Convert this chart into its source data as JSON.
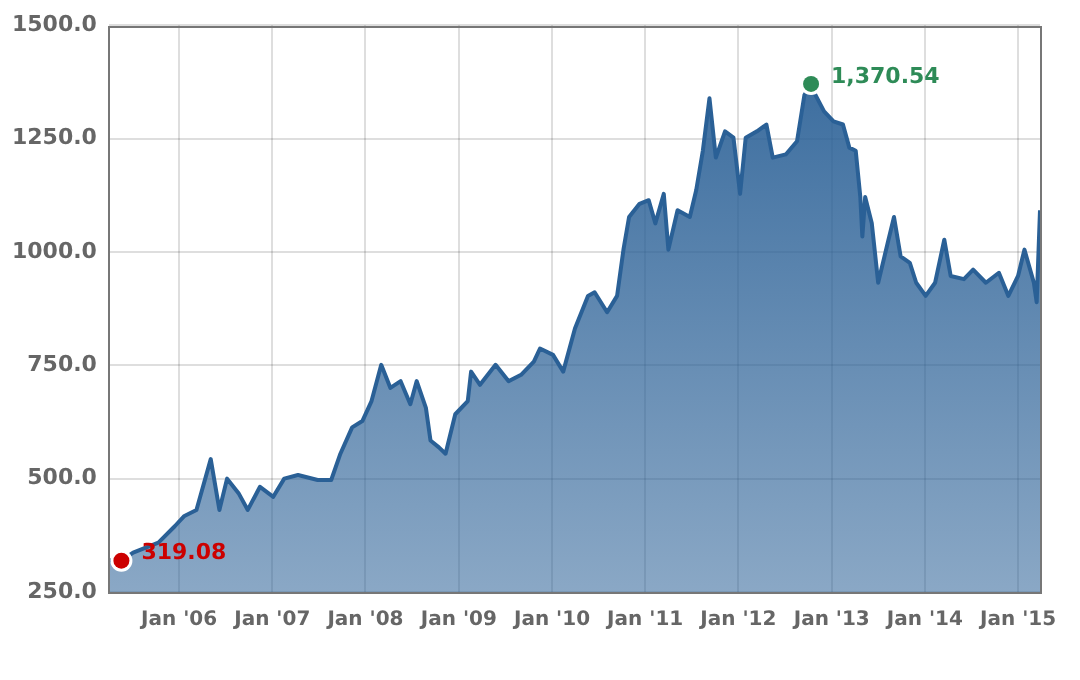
{
  "chart_data": {
    "type": "area",
    "x": [
      "2005-04-01",
      "2005-05-20",
      "2005-07-05",
      "2005-10-12",
      "2005-12-15",
      "2006-01-20",
      "2006-03-10",
      "2006-05-05",
      "2006-06-08",
      "2006-07-08",
      "2006-08-22",
      "2006-09-27",
      "2006-11-14",
      "2007-01-05",
      "2007-02-17",
      "2007-04-12",
      "2007-06-28",
      "2007-08-20",
      "2007-09-25",
      "2007-11-10",
      "2007-12-20",
      "2008-01-25",
      "2008-03-03",
      "2008-04-08",
      "2008-05-18",
      "2008-06-25",
      "2008-07-20",
      "2008-08-25",
      "2008-09-12",
      "2008-10-15",
      "2008-11-10",
      "2008-12-18",
      "2009-02-05",
      "2009-02-18",
      "2009-03-25",
      "2009-05-25",
      "2009-07-15",
      "2009-09-02",
      "2009-10-22",
      "2009-11-15",
      "2010-01-05",
      "2010-02-14",
      "2010-04-01",
      "2010-05-22",
      "2010-06-17",
      "2010-08-05",
      "2010-09-13",
      "2010-10-08",
      "2010-10-30",
      "2010-12-10",
      "2011-01-15",
      "2011-02-10",
      "2011-03-15",
      "2011-04-02",
      "2011-05-08",
      "2011-06-25",
      "2011-07-20",
      "2011-08-15",
      "2011-09-10",
      "2011-10-05",
      "2011-11-10",
      "2011-12-13",
      "2012-01-08",
      "2012-01-30",
      "2012-03-14",
      "2012-04-20",
      "2012-05-15",
      "2012-07-05",
      "2012-08-18",
      "2012-09-16",
      "2012-10-12",
      "2012-10-23",
      "2012-12-02",
      "2013-01-08",
      "2013-02-14",
      "2013-03-11",
      "2013-04-05",
      "2013-04-23",
      "2013-05-01",
      "2013-05-12",
      "2013-06-07",
      "2013-07-02",
      "2013-08-08",
      "2013-09-02",
      "2013-09-28",
      "2013-11-03",
      "2013-11-28",
      "2014-01-04",
      "2014-02-10",
      "2014-03-18",
      "2014-04-12",
      "2014-06-03",
      "2014-07-09",
      "2014-08-28",
      "2014-10-18",
      "2014-11-24",
      "2015-01-01",
      "2015-01-26",
      "2015-03-04",
      "2015-03-15",
      "2015-03-28"
    ],
    "series": [
      {
        "color": "#2a6096",
        "values": [
          320,
          319,
          337,
          359,
          395,
          417,
          431,
          543,
          431,
          500,
          468,
          431,
          482,
          460,
          500,
          508,
          497,
          497,
          555,
          613,
          627,
          671,
          751,
          700,
          715,
          664,
          715,
          656,
          584,
          569,
          555,
          642,
          671,
          736,
          707,
          751,
          715,
          729,
          758,
          787,
          773,
          736,
          831,
          903,
          911,
          867,
          903,
          1005,
          1077,
          1106,
          1114,
          1063,
          1128,
          1005,
          1092,
          1077,
          1136,
          1223,
          1339,
          1208,
          1266,
          1252,
          1128,
          1252,
          1266,
          1281,
          1208,
          1215,
          1244,
          1346,
          1370,
          1353,
          1310,
          1288,
          1281,
          1230,
          1223,
          1121,
          1034,
          1121,
          1063,
          932,
          1019,
          1077,
          990,
          976,
          932,
          903,
          932,
          1027,
          947,
          940,
          961,
          932,
          954,
          903,
          947,
          1005,
          932,
          889,
          1092
        ]
      }
    ],
    "xlim": [
      "2005-04-01",
      "2015-03-28"
    ],
    "xticks": [
      {
        "value": "2006-01",
        "label": "Jan '06"
      },
      {
        "value": "2007-01",
        "label": "Jan '07"
      },
      {
        "value": "2008-01",
        "label": "Jan '08"
      },
      {
        "value": "2009-01",
        "label": "Jan '09"
      },
      {
        "value": "2010-01",
        "label": "Jan '10"
      },
      {
        "value": "2011-01",
        "label": "Jan '11"
      },
      {
        "value": "2012-01",
        "label": "Jan '12"
      },
      {
        "value": "2013-01",
        "label": "Jan '13"
      },
      {
        "value": "2014-01",
        "label": "Jan '14"
      },
      {
        "value": "2015-01",
        "label": "Jan '15"
      }
    ],
    "ylim": [
      250,
      1500
    ],
    "yticks": [
      {
        "value": 250,
        "label": "250.0"
      },
      {
        "value": 500,
        "label": "500.0"
      },
      {
        "value": 750,
        "label": "750.0"
      },
      {
        "value": 1000,
        "label": "1000.0"
      },
      {
        "value": 1250,
        "label": "1250.0"
      },
      {
        "value": 1500,
        "label": "1500.0"
      }
    ],
    "grid": true,
    "legend": false,
    "annotations": [
      {
        "text": "319.08",
        "x": "2005-05-20",
        "y": 319.08
      },
      {
        "text": "1,370.54",
        "x": "2012-10-12",
        "y": 1370.54
      }
    ]
  }
}
